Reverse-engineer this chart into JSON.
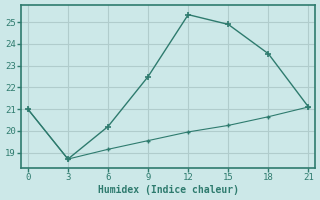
{
  "xlabel": "Humidex (Indice chaleur)",
  "background_color": "#cce8e8",
  "grid_color": "#b0cccc",
  "line_color": "#2e7b6e",
  "series1_x": [
    0,
    3,
    6,
    9,
    12,
    15,
    18,
    21
  ],
  "series1_y": [
    21.0,
    18.7,
    20.2,
    22.5,
    25.35,
    24.9,
    23.55,
    21.1
  ],
  "series2_x": [
    0,
    3,
    6,
    9,
    12,
    15,
    18,
    21
  ],
  "series2_y": [
    21.0,
    18.7,
    19.15,
    19.55,
    19.95,
    20.25,
    20.65,
    21.1
  ],
  "xlim": [
    -0.5,
    21.5
  ],
  "ylim": [
    18.3,
    25.8
  ],
  "xticks": [
    0,
    3,
    6,
    9,
    12,
    15,
    18,
    21
  ],
  "yticks": [
    19,
    20,
    21,
    22,
    23,
    24,
    25
  ]
}
